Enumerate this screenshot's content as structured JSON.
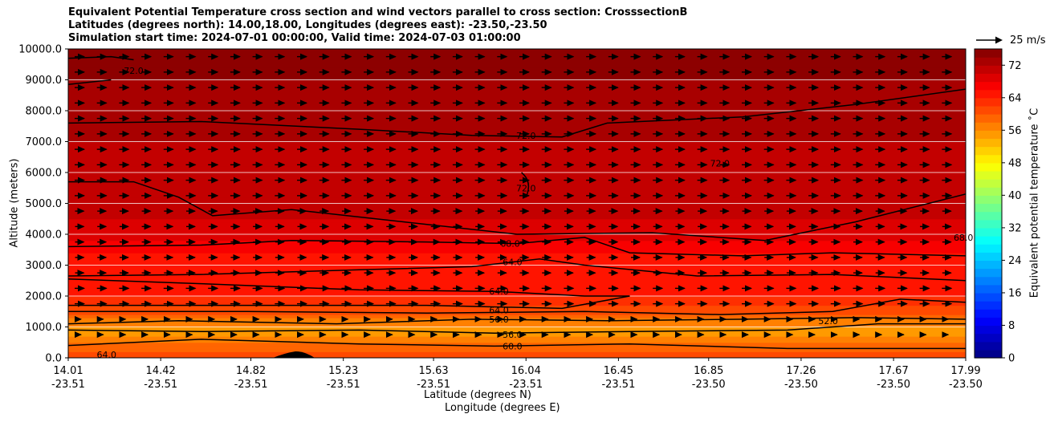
{
  "chart_data": {
    "type": "heatmap",
    "title_lines": [
      "Equivalent Potential Temperature cross section and wind vectors parallel to cross section: CrosssectionB",
      "Latitudes (degrees north): 14.00,18.00, Longitudes (degrees east): -23.50,-23.50",
      "Simulation start time: 2024-07-01 00:00:00, Valid time: 2024-07-03 01:00:00"
    ],
    "xlabel": "Latitude (degrees N)",
    "xlabel2": "Longitude (degrees E)",
    "ylabel": "Altitude (meters)",
    "colorbar_label": "Equivalent potential temperature $^\\circ$C",
    "colorbar_label_text": "Equivalent potential temperature ˚C",
    "quiver_key_label": "25 m/s",
    "x_tick_lat": [
      "14.01",
      "14.42",
      "14.82",
      "15.23",
      "15.63",
      "16.04",
      "16.45",
      "16.85",
      "17.26",
      "17.67",
      "17.99"
    ],
    "x_tick_lon": [
      "-23.51",
      "-23.51",
      "-23.51",
      "-23.51",
      "-23.51",
      "-23.51",
      "-23.51",
      "-23.50",
      "-23.50",
      "-23.50",
      "-23.50"
    ],
    "y_ticks": [
      0,
      1000,
      2000,
      3000,
      4000,
      5000,
      6000,
      7000,
      8000,
      9000,
      10000
    ],
    "y_tick_labels": [
      "0.0",
      "1000.0",
      "2000.0",
      "3000.0",
      "4000.0",
      "5000.0",
      "6000.0",
      "7000.0",
      "8000.0",
      "9000.0",
      "10000.0"
    ],
    "ylim": [
      0,
      10000
    ],
    "xlim": [
      14.01,
      17.99
    ],
    "colorbar_ticks": [
      0,
      8,
      16,
      24,
      32,
      40,
      48,
      56,
      64,
      72
    ],
    "colorbar_range": [
      0,
      76
    ],
    "colorbar_step": 2,
    "colormap": "jet",
    "contour_labels": [
      {
        "text": "72.0",
        "x": 16.04,
        "y": 7200
      },
      {
        "text": "72.0",
        "x": 16.04,
        "y": 5500
      },
      {
        "text": "72.0",
        "x": 14.3,
        "y": 9300
      },
      {
        "text": "72.0",
        "x": 16.9,
        "y": 6300
      },
      {
        "text": "68.0",
        "x": 15.97,
        "y": 3700
      },
      {
        "text": "64.0",
        "x": 15.98,
        "y": 3100
      },
      {
        "text": "64.0",
        "x": 15.92,
        "y": 2150
      },
      {
        "text": "64.0",
        "x": 15.92,
        "y": 1550
      },
      {
        "text": "56.0",
        "x": 15.92,
        "y": 1250
      },
      {
        "text": "56.0",
        "x": 15.98,
        "y": 750
      },
      {
        "text": "60.0",
        "x": 15.98,
        "y": 380
      },
      {
        "text": "52.0",
        "x": 17.38,
        "y": 1200
      },
      {
        "text": "64.0",
        "x": 14.18,
        "y": 100
      },
      {
        "text": "68.0",
        "x": 17.98,
        "y": 3900
      }
    ],
    "theta_e_profile": [
      {
        "altitude": 0,
        "value": 61
      },
      {
        "altitude": 400,
        "value": 59
      },
      {
        "altitude": 700,
        "value": 56
      },
      {
        "altitude": 900,
        "value": 55
      },
      {
        "altitude": 1200,
        "value": 57
      },
      {
        "altitude": 1500,
        "value": 61
      },
      {
        "altitude": 2000,
        "value": 64
      },
      {
        "altitude": 2600,
        "value": 64
      },
      {
        "altitude": 3000,
        "value": 65
      },
      {
        "altitude": 3400,
        "value": 66
      },
      {
        "altitude": 4000,
        "value": 69
      },
      {
        "altitude": 5000,
        "value": 71
      },
      {
        "altitude": 6000,
        "value": 71
      },
      {
        "altitude": 7000,
        "value": 72
      },
      {
        "altitude": 8000,
        "value": 73
      },
      {
        "altitude": 9000,
        "value": 74
      },
      {
        "altitude": 10000,
        "value": 74
      }
    ],
    "wind_vectors": {
      "direction": "along cross section (toward higher latitude)",
      "reference_speed": 25,
      "units": "m/s"
    }
  }
}
